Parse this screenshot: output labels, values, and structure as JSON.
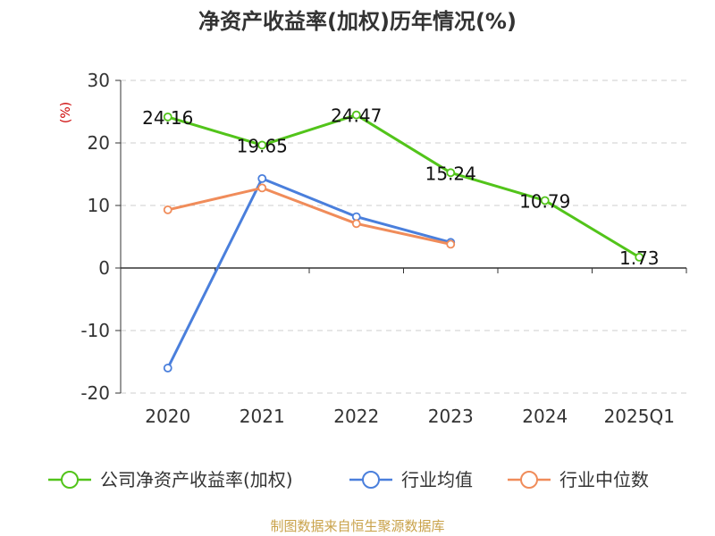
{
  "chart_data": {
    "type": "line",
    "title": "净资产收益率(加权)历年情况(%)",
    "ylabel": "(%)",
    "xlabel": "",
    "categories": [
      "2020",
      "2021",
      "2022",
      "2023",
      "2024",
      "2025Q1"
    ],
    "ylim": [
      -20,
      30
    ],
    "yticks": [
      30,
      20,
      10,
      0,
      -10,
      -20
    ],
    "grid": true,
    "legend_position": "bottom",
    "series": [
      {
        "name": "公司净资产收益率(加权)",
        "color": "#52c41a",
        "values": [
          24.16,
          19.65,
          24.47,
          15.24,
          10.79,
          1.73
        ],
        "labels": [
          "24.16",
          "19.65",
          "24.47",
          "15.24",
          "10.79",
          "1.73"
        ]
      },
      {
        "name": "行业均值",
        "color": "#4a7fdc",
        "values": [
          -16.0,
          14.3,
          8.2,
          4.1,
          null,
          null
        ]
      },
      {
        "name": "行业中位数",
        "color": "#f08c5a",
        "values": [
          9.3,
          12.8,
          7.1,
          3.8,
          null,
          null
        ]
      }
    ],
    "source": "制图数据来自恒生聚源数据库"
  }
}
